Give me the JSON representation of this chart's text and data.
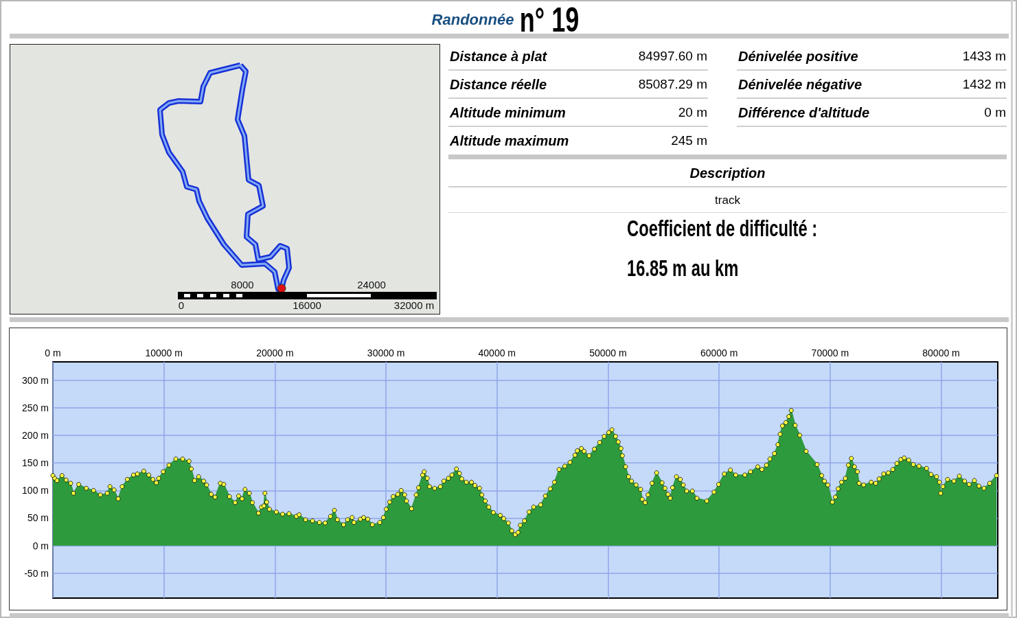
{
  "chart_data": {
    "type": "area",
    "title": "Randonnée",
    "subtitle": "n° 19",
    "annotations": [
      "Distance à plat",
      "84997.60 m",
      "Distance réelle",
      "85087.29 m",
      "Altitude minimum",
      "20 m",
      "Altitude maximum",
      "245 m",
      "Dénivelée positive",
      "1433 m",
      "Dénivelée négative",
      "1432 m",
      "Différence d'altitude",
      "0 m",
      "Description",
      "track",
      "Coefficient de difficulté :",
      "16.85 m au km",
      "0",
      "8000",
      "16000",
      "24000",
      "32000 m"
    ],
    "xlim": [
      0,
      85100
    ],
    "ylim": [
      -95,
      333
    ],
    "xticks": [
      {
        "value": 0,
        "label": "0 m"
      },
      {
        "value": 10000,
        "label": "10000 m"
      },
      {
        "value": 20000,
        "label": "20000 m"
      },
      {
        "value": 30000,
        "label": "30000 m"
      },
      {
        "value": 40000,
        "label": "40000 m"
      },
      {
        "value": 50000,
        "label": "50000 m"
      },
      {
        "value": 60000,
        "label": "60000 m"
      },
      {
        "value": 70000,
        "label": "70000 m"
      },
      {
        "value": 80000,
        "label": "80000 m"
      }
    ],
    "yticks": [
      {
        "value": -50,
        "label": "-50 m"
      },
      {
        "value": 0,
        "label": "0 m"
      },
      {
        "value": 50,
        "label": "50 m"
      },
      {
        "value": 100,
        "label": "100 m"
      },
      {
        "value": 150,
        "label": "150 m"
      },
      {
        "value": 200,
        "label": "200 m"
      },
      {
        "value": 250,
        "label": "250 m"
      },
      {
        "value": 300,
        "label": "300 m"
      }
    ],
    "grid": true,
    "marker": "circle",
    "color": "#2e9a3e",
    "x": [
      0,
      165,
      370,
      823,
      1193,
      1605,
      1852,
      2325,
      3004,
      3663,
      4280,
      4897,
      5144,
      5514,
      5885,
      6235,
      6708,
      7263,
      7613,
      8189,
      8642,
      9012,
      9321,
      9527,
      9938,
      10453,
      11070,
      11687,
      12263,
      12469,
      12757,
      13128,
      13580,
      13848,
      14259,
      14609,
      15082,
      15391,
      15905,
      16420,
      16728,
      17037,
      17305,
      17695,
      17963,
      18519,
      18786,
      19000,
      19095,
      19260,
      19506,
      20123,
      20685,
      21266,
      21930,
      22179,
      22760,
      23382,
      24005,
      24524,
      25001,
      25354,
      25623,
      26184,
      26536,
      26951,
      27117,
      27698,
      27989,
      28362,
      28777,
      29441,
      29773,
      30022,
      30334,
      30645,
      31060,
      31371,
      31682,
      31848,
      32305,
      32720,
      32927,
      33301,
      33446,
      33716,
      33923,
      34380,
      34899,
      35210,
      35625,
      35936,
      36351,
      36621,
      36828,
      37243,
      37700,
      38011,
      38426,
      38634,
      38945,
      39256,
      39671,
      40294,
      40605,
      41020,
      41331,
      41642,
      41891,
      42099,
      42472,
      42887,
      43302,
      43930,
      44350,
      44800,
      45175,
      45586,
      46099,
      46572,
      47023,
      47228,
      47598,
      47844,
      48296,
      48768,
      49240,
      49651,
      50062,
      50349,
      50677,
      50924,
      51170,
      51293,
      51581,
      51848,
      52115,
      52525,
      52936,
      53080,
      53346,
      53593,
      53962,
      54373,
      54866,
      55133,
      55400,
      55605,
      55810,
      56159,
      56508,
      56775,
      57083,
      57596,
      58007,
      58890,
      59546,
      59957,
      60470,
      61024,
      61497,
      62318,
      62831,
      63488,
      63858,
      64268,
      64576,
      64987,
      65295,
      65500,
      65705,
      66013,
      66280,
      66500,
      66859,
      67270,
      67844,
      68830,
      69240,
      69487,
      69795,
      70205,
      70472,
      70719,
      71027,
      71376,
      71642,
      71910,
      72197,
      72464,
      72608,
      73018,
      73695,
      74106,
      74414,
      74825,
      75235,
      75646,
      76015,
      76364,
      76672,
      77083,
      77493,
      78007,
      78684,
      79095,
      79588,
      79854,
      79957,
      80162,
      80573,
      81148,
      81641,
      82113,
      82524,
      82996,
      83407,
      83858,
      84371,
      84987
    ],
    "values": [
      127,
      122,
      118,
      127,
      119,
      113,
      95,
      111,
      104,
      100,
      92,
      95,
      107,
      101,
      85,
      107,
      120,
      128,
      130,
      135,
      128,
      120,
      114,
      122,
      134,
      146,
      157,
      157,
      153,
      139,
      118,
      125,
      117,
      110,
      93,
      88,
      113,
      111,
      89,
      78,
      90,
      85,
      102,
      95,
      78,
      59,
      70,
      72,
      95,
      79,
      66,
      61,
      57,
      58,
      53,
      56,
      47,
      45,
      42,
      41,
      53,
      64,
      47,
      38,
      47,
      51,
      42,
      48,
      51,
      48,
      38,
      42,
      51,
      66,
      79,
      89,
      93,
      100,
      92,
      81,
      67,
      92,
      105,
      128,
      134,
      122,
      107,
      104,
      107,
      117,
      122,
      128,
      139,
      131,
      121,
      115,
      115,
      109,
      104,
      92,
      81,
      70,
      60,
      55,
      49,
      41,
      27,
      20,
      24,
      37,
      45,
      61,
      70,
      74,
      90,
      103,
      115,
      138,
      144,
      151,
      164,
      172,
      176,
      171,
      163,
      175,
      187,
      198,
      205,
      210,
      198,
      188,
      176,
      163,
      143,
      125,
      117,
      110,
      102,
      84,
      78,
      92,
      113,
      132,
      114,
      104,
      93,
      86,
      105,
      125,
      120,
      110,
      99,
      99,
      86,
      81,
      97,
      111,
      130,
      137,
      128,
      128,
      134,
      143,
      138,
      146,
      157,
      167,
      183,
      202,
      217,
      223,
      234,
      245,
      218,
      200,
      171,
      147,
      127,
      117,
      110,
      79,
      88,
      103,
      115,
      122,
      146,
      158,
      143,
      134,
      113,
      110,
      115,
      113,
      121,
      130,
      132,
      138,
      149,
      156,
      159,
      155,
      147,
      144,
      140,
      129,
      125,
      115,
      95,
      107,
      120,
      117,
      126,
      117,
      111,
      118,
      108,
      104,
      113,
      127
    ]
  }
}
